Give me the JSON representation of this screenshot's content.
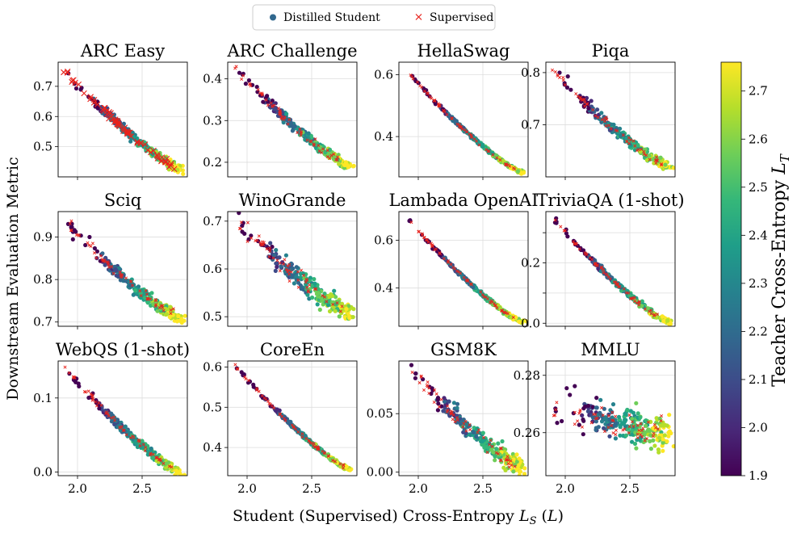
{
  "legend": {
    "distilled_label": "Distilled Student",
    "supervised_label": "Supervised"
  },
  "xlabel": "Student (Supervised) Cross-Entropy L_S (L)",
  "ylabel": "Downstream Evaluation Metric",
  "colorbar": {
    "label": "Teacher Cross-Entropy L_T",
    "range": [
      1.9,
      2.76
    ],
    "ticks": [
      "1.9",
      "2.0",
      "2.1",
      "2.2",
      "2.3",
      "2.4",
      "2.5",
      "2.6",
      "2.7"
    ]
  },
  "colors": {
    "supervised": "#e8231c",
    "viridis": [
      "#440154",
      "#482878",
      "#3e4a89",
      "#31688e",
      "#26828e",
      "#1f9e89",
      "#35b779",
      "#6ece58",
      "#b5de2b",
      "#fde725"
    ]
  },
  "chart_data": [
    {
      "type": "scatter",
      "title": "ARC Easy",
      "xlim": [
        1.85,
        2.85
      ],
      "ylim": [
        0.4,
        0.78
      ],
      "xticks": [
        2.0,
        2.5
      ],
      "yticks": [
        0.5,
        0.6,
        0.7
      ],
      "ytick_labels": [
        "0.5",
        "0.6",
        "0.7"
      ],
      "curve": {
        "start": [
          1.88,
          0.76
        ],
        "end": [
          2.8,
          0.425
        ]
      },
      "spread": 0.015,
      "sup_marker": "large"
    },
    {
      "type": "scatter",
      "title": "ARC Challenge",
      "xlim": [
        1.85,
        2.85
      ],
      "ylim": [
        0.165,
        0.44
      ],
      "xticks": [
        2.0,
        2.5
      ],
      "yticks": [
        0.2,
        0.3,
        0.4
      ],
      "ytick_labels": [
        "0.2",
        "0.3",
        "0.4"
      ],
      "curve": {
        "start": [
          1.9,
          0.43
        ],
        "end": [
          2.8,
          0.19
        ]
      },
      "spread": 0.012,
      "sup_marker": "small"
    },
    {
      "type": "scatter",
      "title": "HellaSwag",
      "xlim": [
        1.85,
        2.85
      ],
      "ylim": [
        0.27,
        0.64
      ],
      "xticks": [
        2.0,
        2.5
      ],
      "yticks": [
        0.4,
        0.6
      ],
      "ytick_labels": [
        "0.4",
        "0.6"
      ],
      "curve": {
        "start": [
          1.9,
          0.615
        ],
        "end": [
          2.8,
          0.285
        ]
      },
      "spread": 0.006,
      "sup_marker": "small"
    },
    {
      "type": "scatter",
      "title": "Piqa",
      "xlim": [
        1.85,
        2.85
      ],
      "ylim": [
        0.6,
        0.82
      ],
      "xticks": [
        2.0,
        2.5
      ],
      "yticks": [
        0.7,
        0.8
      ],
      "ytick_labels": [
        "0.7",
        "0.8"
      ],
      "curve": {
        "start": [
          1.9,
          0.805
        ],
        "end": [
          2.8,
          0.62
        ]
      },
      "spread": 0.01,
      "sup_marker": "small"
    },
    {
      "type": "scatter",
      "title": "Sciq",
      "xlim": [
        1.85,
        2.85
      ],
      "ylim": [
        0.69,
        0.96
      ],
      "xticks": [
        2.0,
        2.5
      ],
      "yticks": [
        0.7,
        0.8,
        0.9
      ],
      "ytick_labels": [
        "0.7",
        "0.8",
        "0.9"
      ],
      "curve": {
        "start": [
          1.9,
          0.94
        ],
        "end": [
          2.8,
          0.71
        ]
      },
      "spread": 0.015,
      "sup_marker": "small"
    },
    {
      "type": "scatter",
      "title": "WinoGrande",
      "xlim": [
        1.85,
        2.85
      ],
      "ylim": [
        0.48,
        0.72
      ],
      "xticks": [
        2.0,
        2.5
      ],
      "yticks": [
        0.5,
        0.6,
        0.7
      ],
      "ytick_labels": [
        "0.5",
        "0.6",
        "0.7"
      ],
      "curve": {
        "start": [
          1.9,
          0.705
        ],
        "end": [
          2.8,
          0.51
        ]
      },
      "spread": 0.022,
      "sup_marker": "small"
    },
    {
      "type": "scatter",
      "title": "Lambada OpenAI",
      "xlim": [
        1.85,
        2.85
      ],
      "ylim": [
        0.24,
        0.72
      ],
      "xticks": [
        2.0,
        2.5
      ],
      "yticks": [
        0.4,
        0.6
      ],
      "ytick_labels": [
        "0.4",
        "0.6"
      ],
      "curve": {
        "start": [
          1.9,
          0.7
        ],
        "end": [
          2.8,
          0.26
        ]
      },
      "spread": 0.008,
      "sup_marker": "small"
    },
    {
      "type": "scatter",
      "title": "TriviaQA (1-shot)",
      "xlim": [
        1.85,
        2.85
      ],
      "ylim": [
        -0.01,
        0.37
      ],
      "xticks": [
        2.0,
        2.5
      ],
      "yticks": [
        0.0,
        0.1,
        0.2,
        0.3
      ],
      "ytick_labels": [
        "0.0",
        "",
        "0.2",
        ""
      ],
      "curve": {
        "start": [
          1.9,
          0.35
        ],
        "end": [
          2.8,
          0.005
        ]
      },
      "spread": 0.01,
      "sup_marker": "small"
    },
    {
      "type": "scatter",
      "title": "WebQS (1-shot)",
      "xlim": [
        1.85,
        2.85
      ],
      "ylim": [
        -0.005,
        0.15
      ],
      "xticks": [
        2.0,
        2.5
      ],
      "yticks": [
        0.0,
        0.1
      ],
      "ytick_labels": [
        "0.0",
        "0.1"
      ],
      "curve": {
        "start": [
          1.9,
          0.14
        ],
        "end": [
          2.8,
          0.0
        ]
      },
      "spread": 0.006,
      "sup_marker": "small"
    },
    {
      "type": "scatter",
      "title": "CoreEn",
      "xlim": [
        1.85,
        2.85
      ],
      "ylim": [
        0.33,
        0.615
      ],
      "xticks": [
        2.0,
        2.5
      ],
      "yticks": [
        0.4,
        0.5,
        0.6
      ],
      "ytick_labels": [
        "0.4",
        "0.5",
        "0.6"
      ],
      "curve": {
        "start": [
          1.9,
          0.605
        ],
        "end": [
          2.8,
          0.345
        ]
      },
      "spread": 0.005,
      "sup_marker": "small"
    },
    {
      "type": "scatter",
      "title": "GSM8K",
      "xlim": [
        1.85,
        2.85
      ],
      "ylim": [
        -0.003,
        0.095
      ],
      "xticks": [
        2.0,
        2.5
      ],
      "yticks": [
        0.0,
        0.05
      ],
      "ytick_labels": [
        "0.00",
        "0.05"
      ],
      "curve": {
        "start": [
          1.92,
          0.09
        ],
        "end": [
          2.8,
          0.005
        ]
      },
      "spread": 0.008,
      "sup_marker": "small"
    },
    {
      "type": "scatter",
      "title": "MMLU",
      "xlim": [
        1.85,
        2.85
      ],
      "ylim": [
        0.245,
        0.285
      ],
      "xticks": [
        2.0,
        2.5
      ],
      "yticks": [
        0.26,
        0.28
      ],
      "ytick_labels": [
        "0.26",
        "0.28"
      ],
      "curve": {
        "start": [
          1.9,
          0.27
        ],
        "end": [
          2.8,
          0.26
        ]
      },
      "spread": 0.006,
      "sup_marker": "small"
    }
  ]
}
